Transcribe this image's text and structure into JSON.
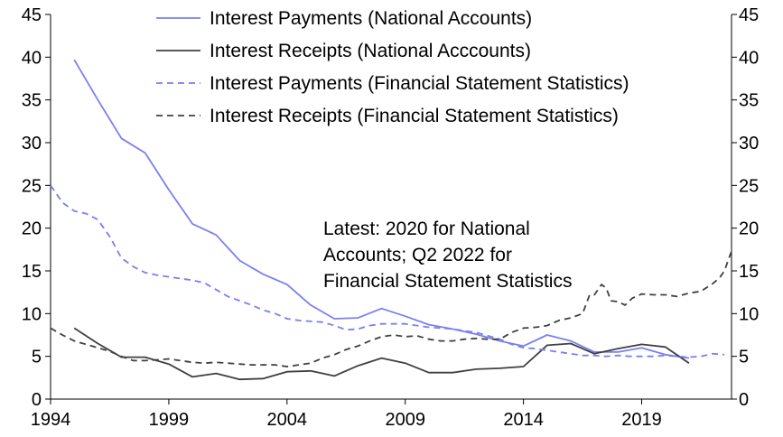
{
  "chart_data": {
    "type": "line",
    "title": "",
    "xlabel": "",
    "ylabel": "",
    "xlim": [
      1994,
      2022.8
    ],
    "ylim": [
      0,
      45
    ],
    "x_ticks": [
      "1994",
      "1999",
      "2004",
      "2009",
      "2014",
      "2019"
    ],
    "x_tick_values": [
      1994,
      1999,
      2004,
      2009,
      2014,
      2019
    ],
    "y_ticks": [
      "0",
      "5",
      "10",
      "15",
      "20",
      "25",
      "30",
      "35",
      "40",
      "45"
    ],
    "y_tick_values": [
      0,
      5,
      10,
      15,
      20,
      25,
      30,
      35,
      40,
      45
    ],
    "grid": false,
    "right_axis_mirrors_left": true,
    "legend_position": "top-center",
    "series": [
      {
        "name": "Interest Payments (National Accounts)",
        "color": "#7b7ff0",
        "style": "solid",
        "points": [
          [
            1995.0,
            39.7
          ],
          [
            1996.0,
            35.0
          ],
          [
            1997.0,
            30.5
          ],
          [
            1998.0,
            28.8
          ],
          [
            1999.0,
            24.5
          ],
          [
            2000.0,
            20.5
          ],
          [
            2001.0,
            19.2
          ],
          [
            2002.0,
            16.2
          ],
          [
            2003.0,
            14.6
          ],
          [
            2004.0,
            13.4
          ],
          [
            2005.0,
            11.0
          ],
          [
            2006.0,
            9.4
          ],
          [
            2007.0,
            9.5
          ],
          [
            2008.0,
            10.6
          ],
          [
            2009.0,
            9.7
          ],
          [
            2010.0,
            8.7
          ],
          [
            2011.0,
            8.2
          ],
          [
            2012.0,
            7.6
          ],
          [
            2013.0,
            6.8
          ],
          [
            2014.0,
            6.2
          ],
          [
            2015.0,
            7.5
          ],
          [
            2016.0,
            6.8
          ],
          [
            2017.0,
            5.5
          ],
          [
            2018.0,
            5.5
          ],
          [
            2019.0,
            6.0
          ],
          [
            2020.0,
            5.2
          ],
          [
            2021.0,
            4.8
          ]
        ]
      },
      {
        "name": "Interest Receipts (National Acccounts)",
        "color": "#404040",
        "style": "solid",
        "points": [
          [
            1995.0,
            8.3
          ],
          [
            1996.0,
            6.5
          ],
          [
            1997.0,
            4.9
          ],
          [
            1998.0,
            4.9
          ],
          [
            1999.0,
            4.1
          ],
          [
            2000.0,
            2.6
          ],
          [
            2001.0,
            3.0
          ],
          [
            2002.0,
            2.3
          ],
          [
            2003.0,
            2.4
          ],
          [
            2004.0,
            3.2
          ],
          [
            2005.0,
            3.3
          ],
          [
            2006.0,
            2.7
          ],
          [
            2007.0,
            3.9
          ],
          [
            2008.0,
            4.8
          ],
          [
            2009.0,
            4.2
          ],
          [
            2010.0,
            3.1
          ],
          [
            2011.0,
            3.1
          ],
          [
            2012.0,
            3.5
          ],
          [
            2013.0,
            3.6
          ],
          [
            2014.0,
            3.8
          ],
          [
            2015.0,
            6.3
          ],
          [
            2016.0,
            6.5
          ],
          [
            2017.0,
            5.3
          ],
          [
            2018.0,
            5.9
          ],
          [
            2019.0,
            6.4
          ],
          [
            2020.0,
            6.1
          ],
          [
            2021.0,
            4.2
          ]
        ]
      },
      {
        "name": "Interest Payments (Financial Statement Statistics)",
        "color": "#7b7ff0",
        "style": "dashed",
        "points": [
          [
            1994.0,
            25.0
          ],
          [
            1994.5,
            23.0
          ],
          [
            1995.0,
            22.0
          ],
          [
            1995.5,
            21.7
          ],
          [
            1996.0,
            21.0
          ],
          [
            1996.5,
            19.0
          ],
          [
            1997.0,
            16.5
          ],
          [
            1997.5,
            15.5
          ],
          [
            1998.0,
            14.8
          ],
          [
            1998.5,
            14.5
          ],
          [
            1999.0,
            14.3
          ],
          [
            1999.5,
            14.1
          ],
          [
            2000.0,
            13.9
          ],
          [
            2000.5,
            13.6
          ],
          [
            2001.0,
            12.8
          ],
          [
            2001.5,
            12.0
          ],
          [
            2002.0,
            11.5
          ],
          [
            2002.5,
            11.0
          ],
          [
            2003.0,
            10.4
          ],
          [
            2003.5,
            10.0
          ],
          [
            2004.0,
            9.4
          ],
          [
            2004.5,
            9.2
          ],
          [
            2005.0,
            9.1
          ],
          [
            2005.5,
            9.0
          ],
          [
            2006.0,
            8.6
          ],
          [
            2006.5,
            8.1
          ],
          [
            2007.0,
            8.2
          ],
          [
            2007.5,
            8.6
          ],
          [
            2008.0,
            8.8
          ],
          [
            2008.5,
            8.8
          ],
          [
            2009.0,
            8.8
          ],
          [
            2009.5,
            8.6
          ],
          [
            2010.0,
            8.4
          ],
          [
            2010.5,
            8.3
          ],
          [
            2011.0,
            8.2
          ],
          [
            2011.5,
            8.0
          ],
          [
            2012.0,
            7.8
          ],
          [
            2012.5,
            7.4
          ],
          [
            2013.0,
            7.0
          ],
          [
            2013.5,
            6.4
          ],
          [
            2014.0,
            6.0
          ],
          [
            2014.5,
            5.9
          ],
          [
            2015.0,
            5.7
          ],
          [
            2015.5,
            5.5
          ],
          [
            2016.0,
            5.3
          ],
          [
            2016.5,
            5.1
          ],
          [
            2017.0,
            5.1
          ],
          [
            2017.5,
            5.0
          ],
          [
            2018.0,
            5.1
          ],
          [
            2018.5,
            5.0
          ],
          [
            2019.0,
            5.0
          ],
          [
            2019.5,
            5.0
          ],
          [
            2020.0,
            5.1
          ],
          [
            2020.5,
            5.0
          ],
          [
            2021.0,
            4.9
          ],
          [
            2021.5,
            5.0
          ],
          [
            2022.0,
            5.3
          ],
          [
            2022.5,
            5.2
          ]
        ]
      },
      {
        "name": "Interest Receipts (Financial Statement Statistics)",
        "color": "#404040",
        "style": "dashed",
        "points": [
          [
            1994.0,
            8.3
          ],
          [
            1994.5,
            7.5
          ],
          [
            1995.0,
            6.8
          ],
          [
            1995.5,
            6.4
          ],
          [
            1996.0,
            6.0
          ],
          [
            1996.5,
            5.6
          ],
          [
            1997.0,
            5.0
          ],
          [
            1997.5,
            4.5
          ],
          [
            1998.0,
            4.5
          ],
          [
            1998.5,
            4.6
          ],
          [
            1999.0,
            4.7
          ],
          [
            1999.5,
            4.5
          ],
          [
            2000.0,
            4.3
          ],
          [
            2000.5,
            4.2
          ],
          [
            2001.0,
            4.3
          ],
          [
            2001.5,
            4.2
          ],
          [
            2002.0,
            4.1
          ],
          [
            2002.5,
            4.0
          ],
          [
            2003.0,
            4.0
          ],
          [
            2003.5,
            4.0
          ],
          [
            2004.0,
            3.8
          ],
          [
            2004.5,
            4.0
          ],
          [
            2005.0,
            4.2
          ],
          [
            2005.5,
            4.8
          ],
          [
            2006.0,
            5.2
          ],
          [
            2006.5,
            5.8
          ],
          [
            2007.0,
            6.2
          ],
          [
            2007.5,
            6.8
          ],
          [
            2008.0,
            7.3
          ],
          [
            2008.5,
            7.5
          ],
          [
            2009.0,
            7.3
          ],
          [
            2009.5,
            7.4
          ],
          [
            2010.0,
            7.0
          ],
          [
            2010.5,
            6.8
          ],
          [
            2011.0,
            6.8
          ],
          [
            2011.5,
            7.0
          ],
          [
            2012.0,
            7.1
          ],
          [
            2012.5,
            7.0
          ],
          [
            2013.0,
            7.0
          ],
          [
            2013.5,
            7.8
          ],
          [
            2014.0,
            8.3
          ],
          [
            2014.5,
            8.4
          ],
          [
            2015.0,
            8.6
          ],
          [
            2015.5,
            9.2
          ],
          [
            2016.0,
            9.5
          ],
          [
            2016.5,
            10.0
          ],
          [
            2016.8,
            12.2
          ],
          [
            2017.0,
            12.2
          ],
          [
            2017.3,
            13.4
          ],
          [
            2017.5,
            13.0
          ],
          [
            2017.7,
            11.5
          ],
          [
            2018.0,
            11.4
          ],
          [
            2018.3,
            11.0
          ],
          [
            2018.6,
            11.8
          ],
          [
            2019.0,
            12.3
          ],
          [
            2019.5,
            12.2
          ],
          [
            2020.0,
            12.2
          ],
          [
            2020.5,
            12.0
          ],
          [
            2021.0,
            12.4
          ],
          [
            2021.5,
            12.6
          ],
          [
            2022.0,
            13.5
          ],
          [
            2022.3,
            14.2
          ],
          [
            2022.5,
            15.0
          ],
          [
            2022.8,
            17.3
          ]
        ]
      }
    ],
    "annotation": {
      "lines": [
        "Latest: 2020 for National",
        "Accounts; Q2 2022 for",
        "Financial Statement Statistics"
      ]
    }
  }
}
